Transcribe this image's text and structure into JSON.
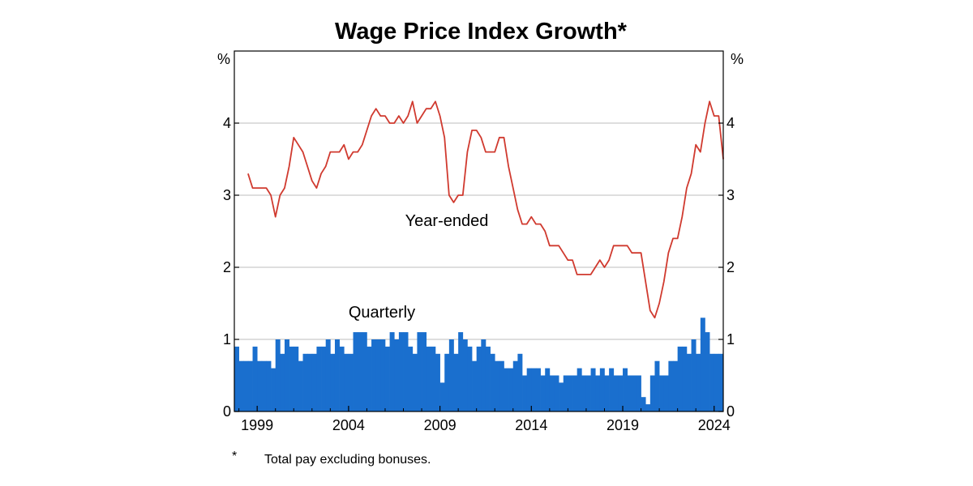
{
  "chart_data": {
    "type": "bar+line",
    "title": "Wage Price Index Growth*",
    "y_unit_left": "%",
    "y_unit_right": "%",
    "ylim": [
      0,
      5
    ],
    "yticks": [
      0,
      1,
      2,
      3,
      4
    ],
    "ytick_labels": [
      "0",
      "1",
      "2",
      "3",
      "4"
    ],
    "grid": true,
    "xlim": [
      1997.75,
      2024.5
    ],
    "xticks": [
      1999,
      2004,
      2009,
      2014,
      2019,
      2024
    ],
    "xtick_labels": [
      "1999",
      "2004",
      "2009",
      "2014",
      "2019",
      "2024"
    ],
    "series": [
      {
        "name": "Quarterly",
        "label": "Quarterly",
        "type": "bar",
        "color": "#1a6fce",
        "x_start": 1997.75,
        "step": 0.25,
        "values": [
          0.9,
          0.7,
          0.7,
          0.7,
          0.9,
          0.7,
          0.7,
          0.7,
          0.6,
          1.0,
          0.8,
          1.0,
          0.9,
          0.9,
          0.7,
          0.8,
          0.8,
          0.8,
          0.9,
          0.9,
          1.0,
          0.8,
          1.0,
          0.9,
          0.8,
          0.8,
          1.1,
          1.1,
          1.1,
          0.9,
          1.0,
          1.0,
          1.0,
          0.9,
          1.1,
          1.0,
          1.1,
          1.1,
          0.9,
          0.8,
          1.1,
          1.1,
          0.9,
          0.9,
          0.8,
          0.4,
          0.8,
          1.0,
          0.8,
          1.1,
          1.0,
          0.9,
          0.7,
          0.9,
          1.0,
          0.9,
          0.8,
          0.7,
          0.7,
          0.6,
          0.6,
          0.7,
          0.8,
          0.5,
          0.6,
          0.6,
          0.6,
          0.5,
          0.6,
          0.5,
          0.5,
          0.4,
          0.5,
          0.5,
          0.5,
          0.6,
          0.5,
          0.5,
          0.6,
          0.5,
          0.6,
          0.5,
          0.6,
          0.5,
          0.5,
          0.6,
          0.5,
          0.5,
          0.5,
          0.2,
          0.1,
          0.5,
          0.7,
          0.5,
          0.5,
          0.7,
          0.7,
          0.9,
          0.9,
          0.8,
          1.0,
          0.8,
          1.3,
          1.1,
          0.8,
          0.8,
          0.8
        ]
      },
      {
        "name": "Year-ended",
        "label": "Year-ended",
        "type": "line",
        "color": "#d03a2f",
        "x_start": 1998.5,
        "step": 0.25,
        "values": [
          3.3,
          3.1,
          3.1,
          3.1,
          3.1,
          3.0,
          2.7,
          3.0,
          3.1,
          3.4,
          3.8,
          3.7,
          3.6,
          3.4,
          3.2,
          3.1,
          3.3,
          3.4,
          3.6,
          3.6,
          3.6,
          3.7,
          3.5,
          3.6,
          3.6,
          3.7,
          3.9,
          4.1,
          4.2,
          4.1,
          4.1,
          4.0,
          4.0,
          4.1,
          4.0,
          4.1,
          4.3,
          4.0,
          4.1,
          4.2,
          4.2,
          4.3,
          4.1,
          3.8,
          3.0,
          2.9,
          3.0,
          3.0,
          3.6,
          3.9,
          3.9,
          3.8,
          3.6,
          3.6,
          3.6,
          3.8,
          3.8,
          3.4,
          3.1,
          2.8,
          2.6,
          2.6,
          2.7,
          2.6,
          2.6,
          2.5,
          2.3,
          2.3,
          2.3,
          2.2,
          2.1,
          2.1,
          1.9,
          1.9,
          1.9,
          1.9,
          2.0,
          2.1,
          2.0,
          2.1,
          2.3,
          2.3,
          2.3,
          2.3,
          2.2,
          2.2,
          2.2,
          1.8,
          1.4,
          1.3,
          1.5,
          1.8,
          2.2,
          2.4,
          2.4,
          2.7,
          3.1,
          3.3,
          3.7,
          3.6,
          4.0,
          4.3,
          4.1,
          4.1,
          3.5
        ]
      }
    ],
    "footnote_mark": "*",
    "footnote": "Total pay excluding bonuses."
  }
}
